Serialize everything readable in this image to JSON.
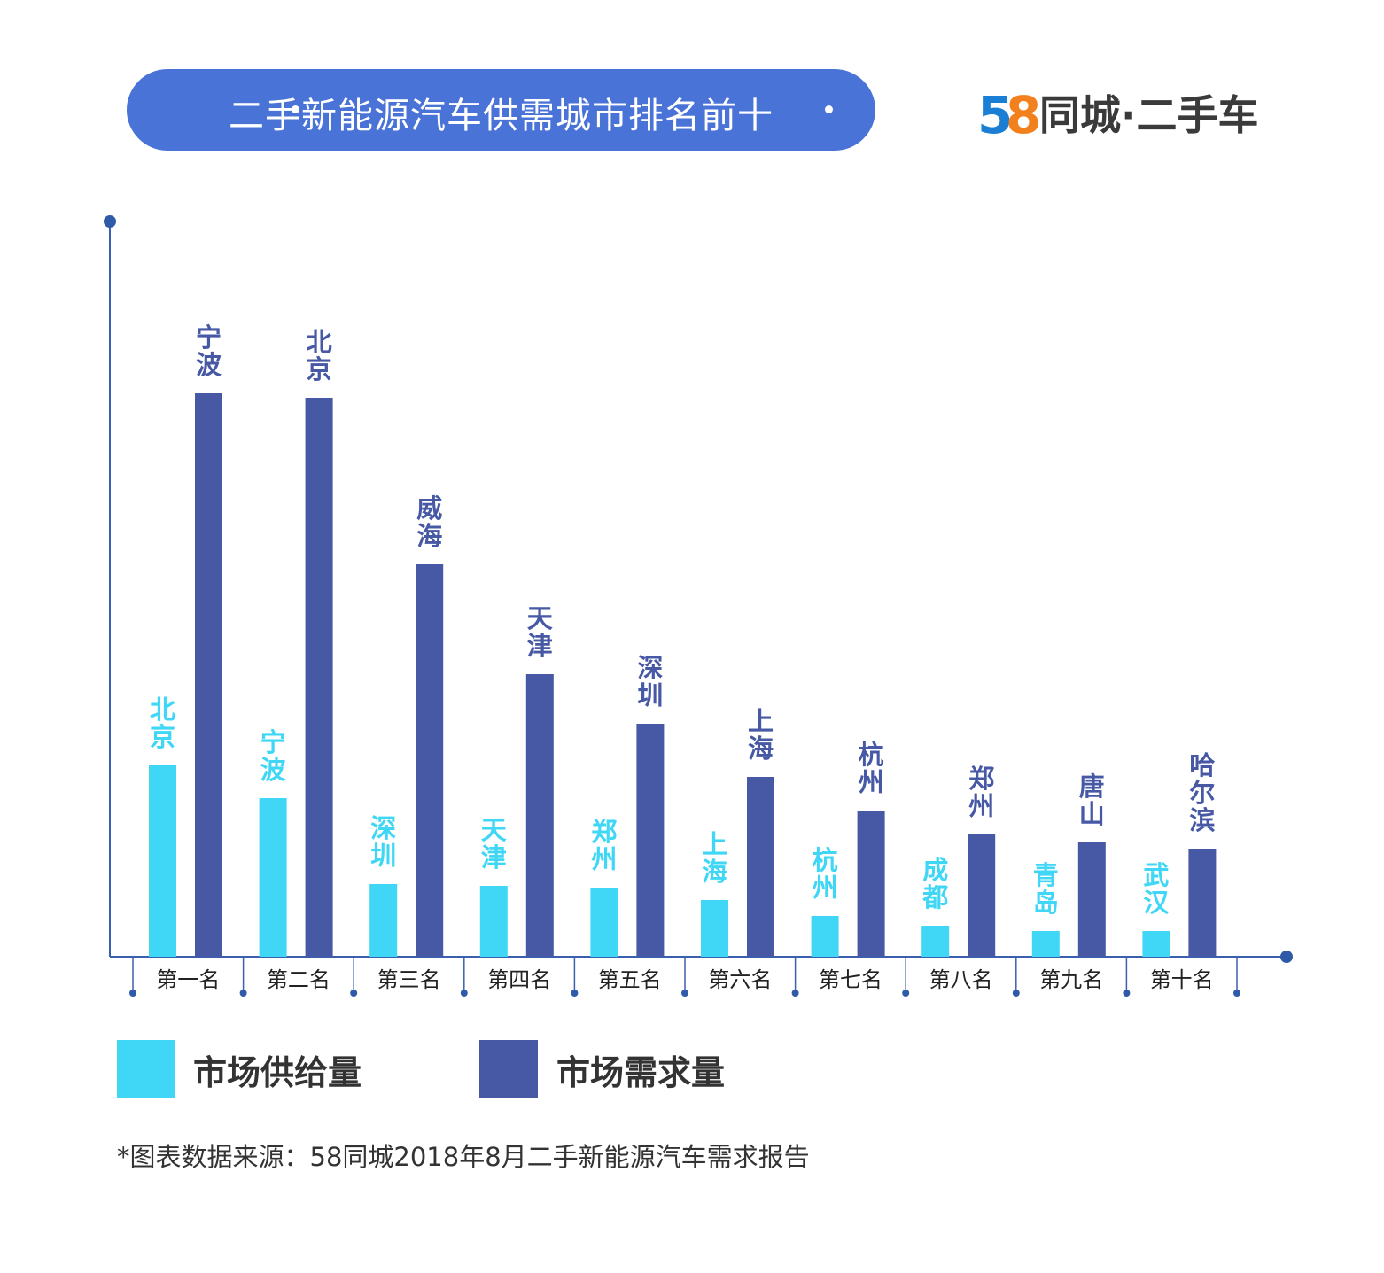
{
  "header": {
    "title": "二手新能源汽车供需城市排名前十",
    "brand_digit_1": "5",
    "brand_digit_2": "8",
    "brand_text": "同城·二手车",
    "brand_colors": {
      "five": "#1a7fd4",
      "eight_green": "#6cc13f",
      "eight_orange": "#f2811d",
      "eight_red": "#e83f3f"
    }
  },
  "chart_data": {
    "type": "bar",
    "categories": [
      "第一名",
      "第二名",
      "第三名",
      "第四名",
      "第五名",
      "第六名",
      "第七名",
      "第八名",
      "第九名",
      "第十名"
    ],
    "series": [
      {
        "name": "市场供给量",
        "color": "#3fd7f5",
        "values": [
          216,
          179,
          82,
          80,
          78,
          64,
          46,
          35,
          29,
          29
        ],
        "cities": [
          "北京",
          "宁波",
          "深圳",
          "天津",
          "郑州",
          "上海",
          "杭州",
          "成都",
          "青岛",
          "武汉"
        ]
      },
      {
        "name": "市场需求量",
        "color": "#4758a5",
        "values": [
          636,
          631,
          443,
          319,
          263,
          203,
          165,
          138,
          129,
          122
        ],
        "cities": [
          "宁波",
          "北京",
          "威海",
          "天津",
          "深圳",
          "上海",
          "杭州",
          "郑州",
          "唐山",
          "哈尔滨"
        ]
      }
    ],
    "ylim": [
      0,
      830
    ],
    "axis_color": "#3a5fae",
    "grid": false,
    "legend": "bottom-left"
  },
  "footer": {
    "source": "*图表数据来源：58同城2018年8月二手新能源汽车需求报告"
  }
}
